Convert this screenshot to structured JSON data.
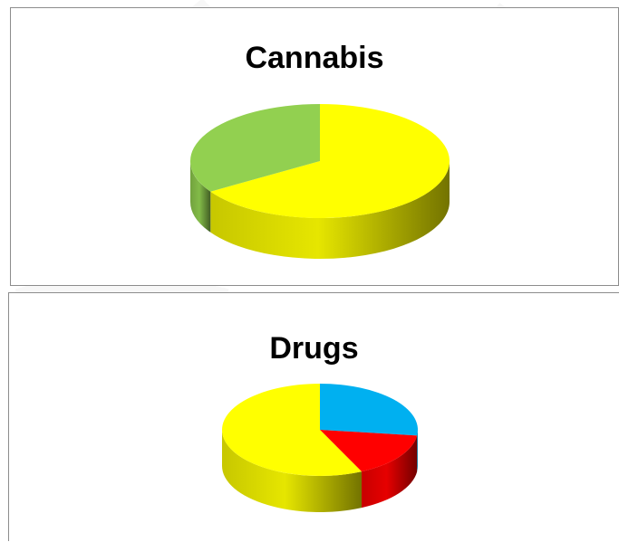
{
  "chart_data": [
    {
      "type": "pie",
      "style": "3d",
      "title": "Cannabis",
      "slices": [
        {
          "value": 66,
          "color": "#ffff00"
        },
        {
          "value": 34,
          "color": "#92d050"
        }
      ]
    },
    {
      "type": "pie",
      "style": "3d",
      "title": "Drugs",
      "slices": [
        {
          "value": 27,
          "color": "#00b0f0"
        },
        {
          "value": 16,
          "color": "#ff0000"
        },
        {
          "value": 57,
          "color": "#ffff00"
        }
      ]
    }
  ]
}
